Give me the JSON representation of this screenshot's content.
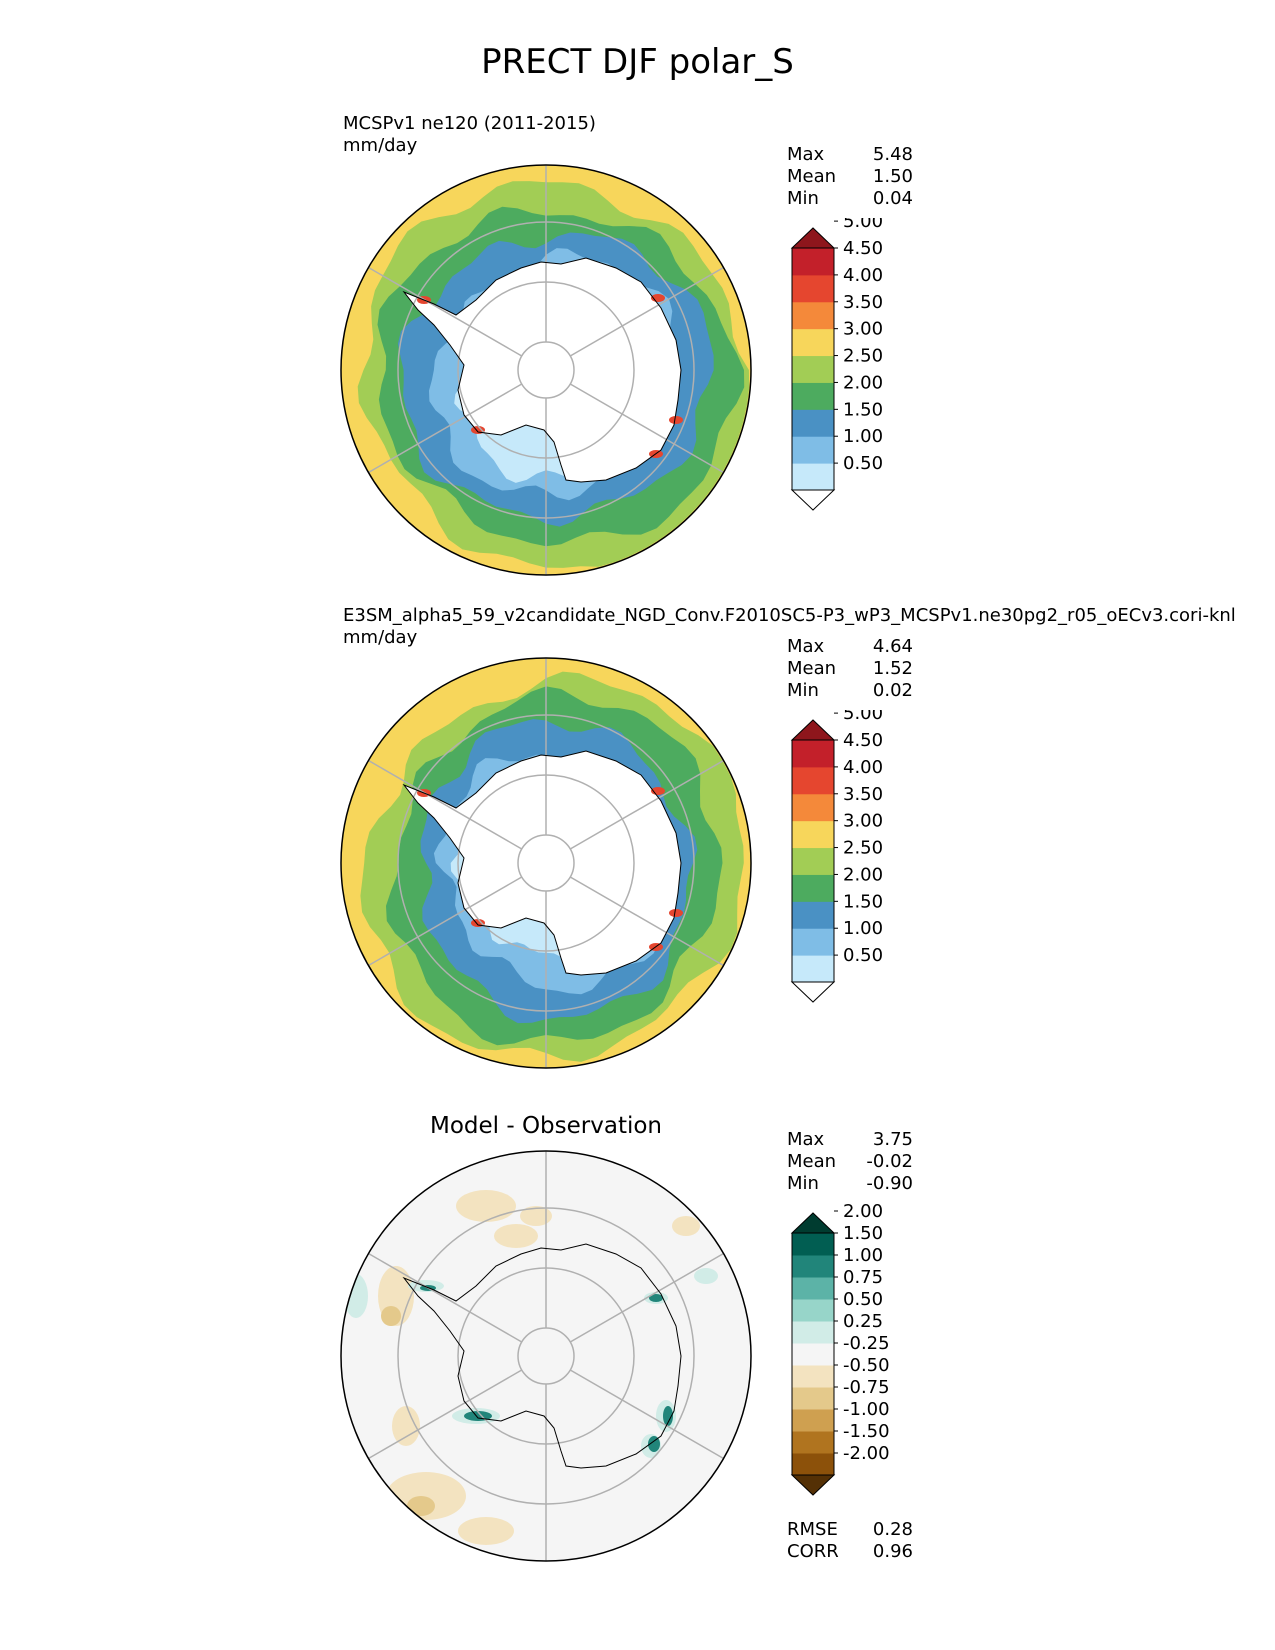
{
  "figure": {
    "title": "PRECT DJF polar_S"
  },
  "chart_data": [
    {
      "type": "heatmap",
      "projection": "south-polar-stereographic",
      "title": "MCSPv1 ne120 (2011-2015)",
      "units": "mm/day",
      "stats": {
        "max": "5.48",
        "mean": "1.50",
        "min": "0.04"
      },
      "colorbar": {
        "ticks": [
          "0.50",
          "1.00",
          "1.50",
          "2.00",
          "2.50",
          "3.00",
          "3.50",
          "4.00",
          "4.50",
          "5.00"
        ],
        "colors": [
          "#ffffff",
          "#c6e9fa",
          "#7fbde6",
          "#4a91c4",
          "#4dab5f",
          "#a2cd55",
          "#f7d65b",
          "#f4893a",
          "#e5462f",
          "#c3202a",
          "#8e161c"
        ],
        "extend": "both"
      },
      "bands": [
        {
          "level": 1,
          "color": "#c6e9fa",
          "base": 0.47
        },
        {
          "level": 2,
          "color": "#7fbde6",
          "base": 0.58
        },
        {
          "level": 3,
          "color": "#4a91c4",
          "base": 0.72
        },
        {
          "level": 4,
          "color": "#4dab5f",
          "base": 0.84
        },
        {
          "level": 5,
          "color": "#a2cd55",
          "base": 0.94
        }
      ]
    },
    {
      "type": "heatmap",
      "projection": "south-polar-stereographic",
      "title": "E3SM_alpha5_59_v2candidate_NGD_Conv.F2010SC5-P3_wP3_MCSPv1.ne30pg2_r05_oECv3.cori-knl",
      "units": "mm/day",
      "stats": {
        "max": "4.64",
        "mean": "1.52",
        "min": "0.02"
      },
      "colorbar": {
        "ticks": [
          "0.50",
          "1.00",
          "1.50",
          "2.00",
          "2.50",
          "3.00",
          "3.50",
          "4.00",
          "4.50",
          "5.00"
        ],
        "colors": [
          "#ffffff",
          "#c6e9fa",
          "#7fbde6",
          "#4a91c4",
          "#4dab5f",
          "#a2cd55",
          "#f7d65b",
          "#f4893a",
          "#e5462f",
          "#c3202a",
          "#8e161c"
        ],
        "extend": "both"
      },
      "bands": [
        {
          "level": 1,
          "color": "#c6e9fa",
          "base": 0.45
        },
        {
          "level": 2,
          "color": "#7fbde6",
          "base": 0.56
        },
        {
          "level": 3,
          "color": "#4a91c4",
          "base": 0.69
        },
        {
          "level": 4,
          "color": "#4dab5f",
          "base": 0.82
        },
        {
          "level": 5,
          "color": "#a2cd55",
          "base": 0.92
        }
      ]
    },
    {
      "type": "heatmap",
      "projection": "south-polar-stereographic",
      "title": "Model - Observation",
      "stats": {
        "max": "3.75",
        "mean": "-0.02",
        "min": "-0.90"
      },
      "metrics": {
        "rmse": "0.28",
        "corr": "0.96"
      },
      "colorbar": {
        "ticks": [
          "-2.00",
          "-1.50",
          "-1.00",
          "-0.75",
          "-0.50",
          "-0.25",
          "0.25",
          "0.50",
          "0.75",
          "1.00",
          "1.50",
          "2.00"
        ],
        "colors": [
          "#543005",
          "#8c510a",
          "#b0741f",
          "#cfa050",
          "#e4c98b",
          "#f3e3c0",
          "#f5f5f5",
          "#d1ece7",
          "#97d5c9",
          "#5cb3a7",
          "#21857a",
          "#015e52",
          "#003c30"
        ],
        "extend": "both"
      }
    }
  ],
  "stat_labels": {
    "max": "Max",
    "mean": "Mean",
    "min": "Min",
    "rmse": "RMSE",
    "corr": "CORR"
  }
}
